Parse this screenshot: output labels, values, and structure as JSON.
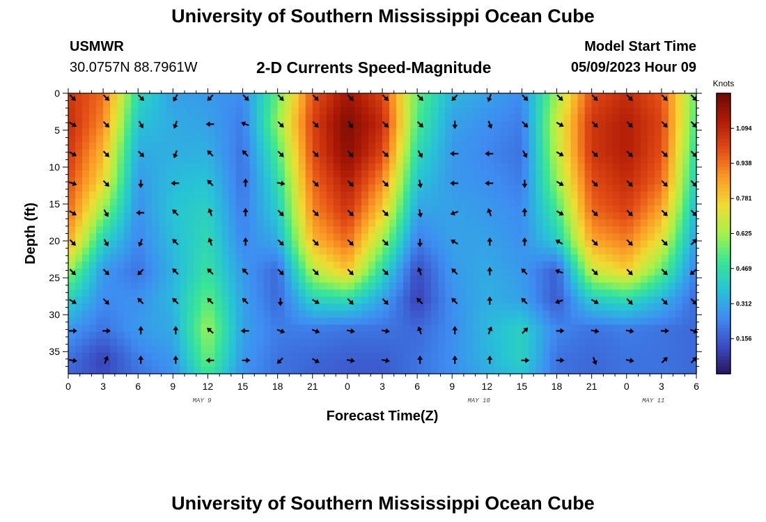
{
  "header": {
    "title": "University of Southern Mississippi Ocean Cube",
    "station": "USMWR",
    "coords": "30.0757N  88.7961W",
    "chart_title": "2-D Currents Speed-Magnitude",
    "model_label": "Model Start Time",
    "model_time": "05/09/2023 Hour 09"
  },
  "footer": {
    "title": "University of Southern Mississippi Ocean Cube"
  },
  "chart_data": {
    "type": "heatmap",
    "title": "2-D Currents Speed-Magnitude",
    "xlabel": "Forecast Time(Z)",
    "ylabel": "Depth (ft)",
    "x_ticks": [
      "0",
      "3",
      "6",
      "9",
      "12",
      "15",
      "18",
      "21",
      "0",
      "3",
      "6",
      "9",
      "12",
      "15",
      "18",
      "21",
      "0",
      "3",
      "6"
    ],
    "x_range_hours": [
      0,
      54
    ],
    "y_ticks": [
      "0",
      "5",
      "10",
      "15",
      "20",
      "25",
      "30",
      "35"
    ],
    "y_range_ft": [
      0,
      38
    ],
    "date_labels": [
      {
        "text": "MAY 9",
        "hour": 11.5
      },
      {
        "text": "MAY 10",
        "hour": 35.3
      },
      {
        "text": "MAY 11",
        "hour": 50.3
      }
    ],
    "colorbar": {
      "label": "Knots",
      "ticks": [
        "1.094",
        "0.938",
        "0.781",
        "0.625",
        "0.469",
        "0.312",
        "0.156"
      ],
      "tick_values": [
        1.094,
        0.938,
        0.781,
        0.625,
        0.469,
        0.312,
        0.156
      ],
      "range": [
        0,
        1.25
      ],
      "colors": [
        "#27155e",
        "#3b4dc4",
        "#3e8cf2",
        "#27c3d6",
        "#39e695",
        "#a6f24a",
        "#f0dc32",
        "#fb9a26",
        "#e24b14",
        "#b01b06",
        "#6e0a03"
      ]
    },
    "speed_grid": {
      "hours": [
        0,
        3,
        6,
        9,
        12,
        15,
        18,
        21,
        24,
        27,
        30,
        33,
        36,
        39,
        42,
        45,
        48,
        51,
        54
      ],
      "depths": [
        0,
        4,
        8,
        12,
        16,
        20,
        24,
        28,
        32,
        36,
        38
      ],
      "values": [
        [
          1.05,
          0.95,
          0.45,
          0.3,
          0.28,
          0.25,
          0.55,
          0.98,
          1.15,
          1.02,
          0.55,
          0.35,
          0.3,
          0.25,
          0.62,
          1.0,
          1.08,
          0.98,
          0.55
        ],
        [
          1.08,
          0.9,
          0.38,
          0.32,
          0.3,
          0.22,
          0.6,
          1.02,
          1.22,
          1.08,
          0.52,
          0.3,
          0.26,
          0.22,
          0.68,
          1.05,
          1.12,
          1.02,
          0.5
        ],
        [
          1.05,
          0.82,
          0.32,
          0.33,
          0.33,
          0.2,
          0.52,
          1.0,
          1.2,
          1.02,
          0.45,
          0.28,
          0.24,
          0.2,
          0.66,
          1.05,
          1.12,
          1.0,
          0.45
        ],
        [
          1.0,
          0.75,
          0.28,
          0.36,
          0.38,
          0.2,
          0.45,
          0.95,
          1.12,
          0.9,
          0.38,
          0.28,
          0.26,
          0.22,
          0.6,
          1.0,
          1.08,
          0.95,
          0.4
        ],
        [
          0.95,
          0.6,
          0.26,
          0.38,
          0.42,
          0.22,
          0.4,
          0.9,
          1.05,
          0.78,
          0.3,
          0.3,
          0.28,
          0.25,
          0.5,
          0.95,
          1.02,
          0.85,
          0.34
        ],
        [
          0.85,
          0.42,
          0.24,
          0.36,
          0.45,
          0.24,
          0.32,
          0.82,
          0.95,
          0.62,
          0.22,
          0.3,
          0.3,
          0.26,
          0.4,
          0.85,
          0.92,
          0.72,
          0.28
        ],
        [
          0.62,
          0.28,
          0.2,
          0.34,
          0.48,
          0.28,
          0.18,
          0.65,
          0.8,
          0.45,
          0.12,
          0.28,
          0.32,
          0.28,
          0.16,
          0.68,
          0.78,
          0.55,
          0.22
        ],
        [
          0.42,
          0.25,
          0.26,
          0.35,
          0.55,
          0.3,
          0.18,
          0.42,
          0.45,
          0.3,
          0.1,
          0.26,
          0.33,
          0.3,
          0.15,
          0.4,
          0.45,
          0.34,
          0.18
        ],
        [
          0.28,
          0.2,
          0.28,
          0.32,
          0.62,
          0.3,
          0.22,
          0.22,
          0.2,
          0.2,
          0.18,
          0.25,
          0.35,
          0.42,
          0.24,
          0.2,
          0.22,
          0.2,
          0.18
        ],
        [
          0.2,
          0.1,
          0.22,
          0.28,
          0.56,
          0.28,
          0.2,
          0.18,
          0.16,
          0.16,
          0.2,
          0.26,
          0.34,
          0.42,
          0.2,
          0.18,
          0.2,
          0.2,
          0.18
        ],
        [
          0.18,
          0.12,
          0.2,
          0.26,
          0.5,
          0.26,
          0.2,
          0.17,
          0.15,
          0.15,
          0.2,
          0.25,
          0.32,
          0.38,
          0.2,
          0.18,
          0.2,
          0.2,
          0.18
        ]
      ]
    },
    "vector_hours": [
      0,
      3,
      6,
      9,
      12,
      15,
      18,
      21,
      24,
      27,
      30,
      33,
      36,
      39,
      42,
      45,
      48,
      51,
      54
    ],
    "vector_depths": [
      0,
      4,
      8,
      12,
      16,
      20,
      24,
      28,
      32,
      36
    ],
    "vector_directions_deg": [
      [
        135,
        135,
        135,
        210,
        225,
        135,
        135,
        135,
        135,
        135,
        135,
        225,
        200,
        135,
        135,
        135,
        135,
        135,
        135
      ],
      [
        120,
        135,
        150,
        200,
        270,
        290,
        135,
        135,
        150,
        135,
        135,
        180,
        160,
        135,
        120,
        135,
        135,
        135,
        135
      ],
      [
        120,
        135,
        135,
        200,
        315,
        315,
        135,
        135,
        140,
        135,
        150,
        270,
        270,
        150,
        120,
        135,
        135,
        135,
        135
      ],
      [
        110,
        135,
        180,
        270,
        315,
        0,
        100,
        135,
        135,
        135,
        170,
        270,
        270,
        180,
        120,
        135,
        135,
        135,
        135
      ],
      [
        120,
        150,
        270,
        315,
        340,
        0,
        135,
        135,
        135,
        135,
        170,
        250,
        340,
        0,
        120,
        135,
        135,
        135,
        135
      ],
      [
        135,
        150,
        200,
        315,
        340,
        0,
        135,
        135,
        135,
        135,
        180,
        300,
        0,
        0,
        300,
        135,
        135,
        135,
        45
      ],
      [
        135,
        135,
        225,
        315,
        315,
        315,
        135,
        135,
        135,
        135,
        340,
        315,
        0,
        315,
        290,
        135,
        135,
        135,
        230
      ],
      [
        120,
        135,
        315,
        315,
        315,
        315,
        180,
        120,
        135,
        135,
        315,
        315,
        0,
        315,
        250,
        120,
        135,
        135,
        135
      ],
      [
        90,
        90,
        0,
        0,
        310,
        270,
        110,
        110,
        100,
        100,
        340,
        0,
        20,
        45,
        90,
        100,
        100,
        90,
        110
      ],
      [
        100,
        20,
        0,
        0,
        270,
        90,
        225,
        120,
        100,
        100,
        0,
        0,
        0,
        90,
        90,
        160,
        100,
        45,
        45
      ]
    ]
  }
}
